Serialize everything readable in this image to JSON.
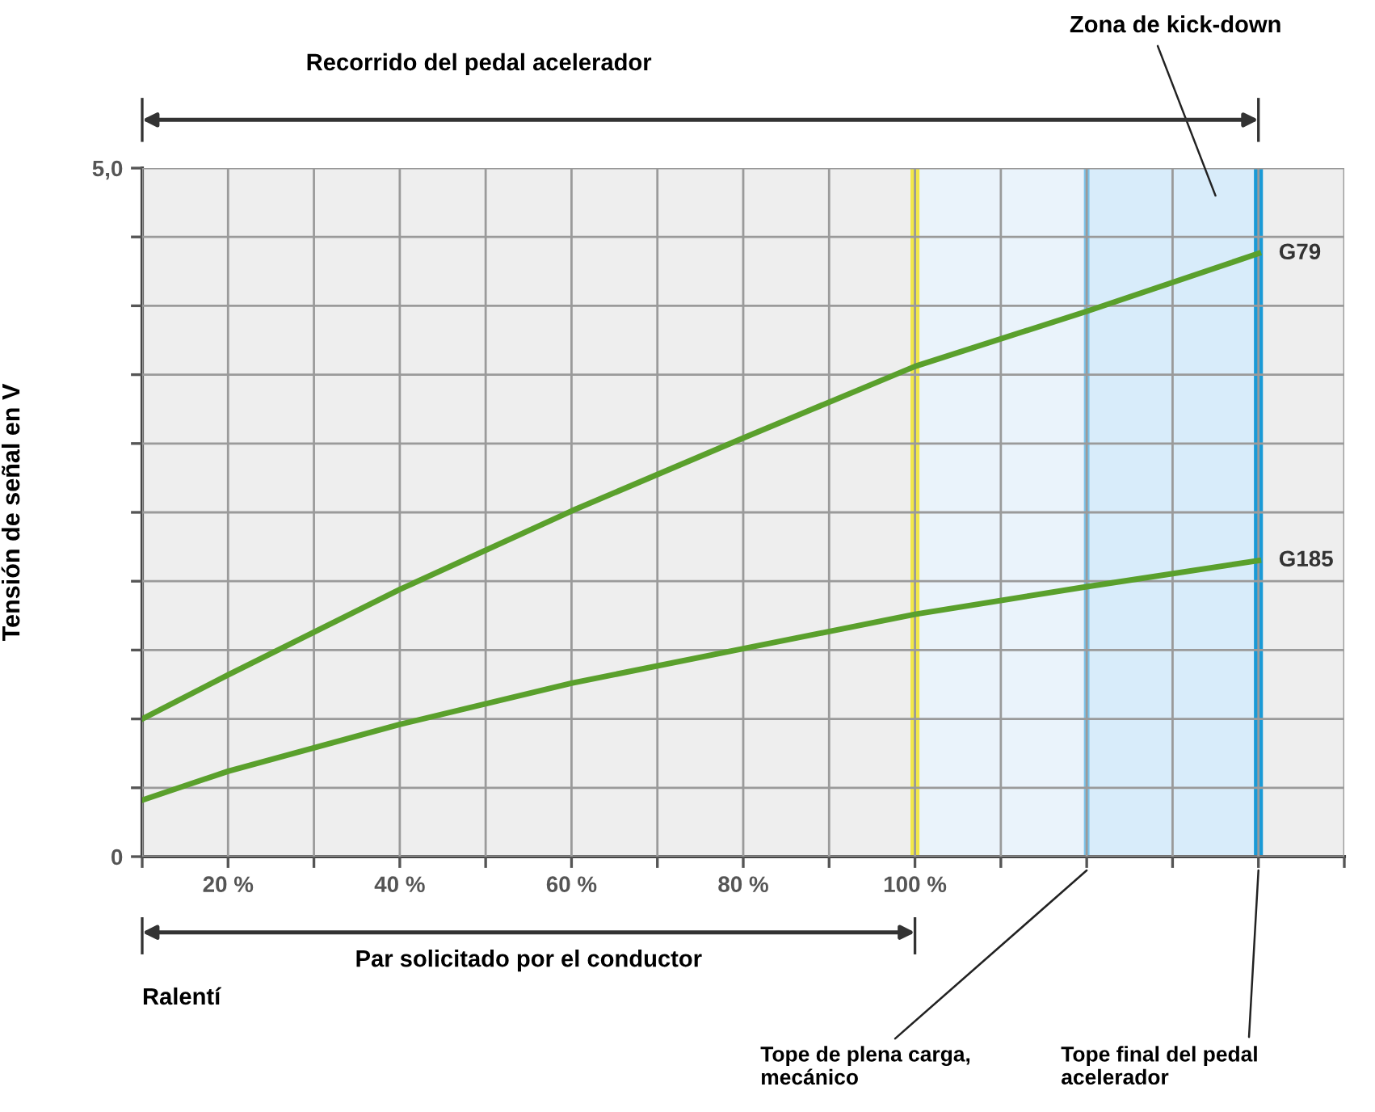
{
  "chart_data": {
    "type": "line",
    "xlabel": null,
    "ylabel": "Tensión de señal en V",
    "x": [
      10,
      20,
      40,
      60,
      80,
      100,
      120,
      140
    ],
    "series": [
      {
        "name": "G79",
        "color": "#5aa02c",
        "values": [
          1.0,
          1.32,
          1.94,
          2.51,
          3.04,
          3.56,
          3.96,
          4.38
        ]
      },
      {
        "name": "G185",
        "color": "#5aa02c",
        "values": [
          0.41,
          0.62,
          0.96,
          1.26,
          1.51,
          1.76,
          1.96,
          2.15
        ]
      }
    ],
    "xlim": [
      10,
      150
    ],
    "xticks": [
      {
        "value": 10,
        "label": null
      },
      {
        "value": 20,
        "label": "20 %"
      },
      {
        "value": 30,
        "label": null
      },
      {
        "value": 40,
        "label": "40 %"
      },
      {
        "value": 50,
        "label": null
      },
      {
        "value": 60,
        "label": "60 %"
      },
      {
        "value": 70,
        "label": null
      },
      {
        "value": 80,
        "label": "80 %"
      },
      {
        "value": 90,
        "label": null
      },
      {
        "value": 100,
        "label": "100 %"
      },
      {
        "value": 110,
        "label": null
      },
      {
        "value": 120,
        "label": null
      },
      {
        "value": 130,
        "label": null
      },
      {
        "value": 140,
        "label": null
      },
      {
        "value": 150,
        "label": null
      }
    ],
    "ylim": [
      0,
      5.0
    ],
    "yticks": [
      0,
      {
        "value": 0.5,
        "label": null
      },
      {
        "value": 1.0,
        "label": null
      },
      {
        "value": 1.5,
        "label": null
      },
      {
        "value": 2.0,
        "label": null
      },
      {
        "value": 2.5,
        "label": null
      },
      {
        "value": 3.0,
        "label": null
      },
      {
        "value": 3.5,
        "label": null
      },
      {
        "value": 4.0,
        "label": null
      },
      {
        "value": 4.5,
        "label": null
      },
      {
        "value": 5.0,
        "label": "5,0"
      }
    ],
    "bands": [
      {
        "axis": "x",
        "from": 100,
        "to": 120,
        "label": null,
        "color": "#eaf3fb"
      },
      {
        "axis": "x",
        "from": 120,
        "to": 140,
        "label": "Zona de kick-down",
        "color": "#d8ecfa"
      }
    ],
    "ref_lines": [
      {
        "axis": "x",
        "value": 100,
        "label": null,
        "color": "#f2e84a"
      },
      {
        "axis": "x",
        "value": 120,
        "label": "Tope de plena carga,\nmecánico",
        "color": "#7cc3ea"
      },
      {
        "axis": "x",
        "value": 140,
        "label": "Tope final del pedal\nacelerador",
        "color": "#1a9ad6"
      }
    ],
    "annotations": [
      "Recorrido del pedal acelerador",
      "Par solicitado por el conductor",
      "Ralentí"
    ],
    "grid": true,
    "legend": false,
    "marker": "none",
    "line_style": "solid"
  }
}
